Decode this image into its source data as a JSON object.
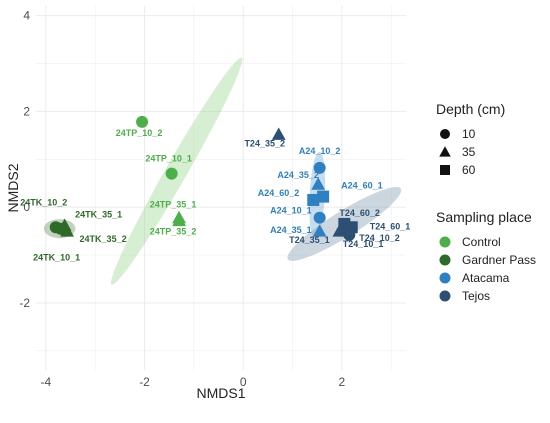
{
  "chart_data": {
    "type": "scatter",
    "xlabel": "NMDS1",
    "ylabel": "NMDS2",
    "xlim": [
      -4.2,
      3.3
    ],
    "ylim": [
      -3.4,
      4.2
    ],
    "x_ticks": [
      -4,
      -2,
      0,
      2
    ],
    "y_ticks": [
      -2,
      0,
      2,
      4
    ],
    "grid": true,
    "legend_position": "right",
    "legends": {
      "shape": {
        "title": "Depth (cm)",
        "items": [
          {
            "label": "10",
            "shape": "circle"
          },
          {
            "label": "35",
            "shape": "triangle"
          },
          {
            "label": "60",
            "shape": "square"
          }
        ]
      },
      "color": {
        "title": "Sampling place",
        "items": [
          {
            "label": "Control",
            "color": "#4daf4a"
          },
          {
            "label": "Gardner Pass",
            "color": "#2e6b2a"
          },
          {
            "label": "Atacama",
            "color": "#2f7fc1"
          },
          {
            "label": "Tejos",
            "color": "#2c4f73"
          }
        ]
      }
    },
    "ellipses": [
      {
        "group": "Control",
        "cx": -1.35,
        "cy": 0.75,
        "rx": 2.65,
        "ry": 0.22,
        "angle_deg": -60.2,
        "color": "#a5d99a"
      },
      {
        "group": "Gardner Pass",
        "cx": -3.72,
        "cy": -0.45,
        "rx": 0.32,
        "ry": 0.2,
        "angle_deg": 0,
        "color": "#7a9a76"
      },
      {
        "group": "Atacama",
        "cx": 1.5,
        "cy": 0.25,
        "rx": 0.88,
        "ry": 0.16,
        "angle_deg": -87,
        "color": "#7fb3e0"
      },
      {
        "group": "Tejos",
        "cx": 2.05,
        "cy": -0.35,
        "rx": 1.35,
        "ry": 0.27,
        "angle_deg": -32,
        "color": "#8fa3b8"
      }
    ],
    "series": [
      {
        "name": "Control",
        "color": "#4daf4a",
        "points": [
          {
            "label": "24TP_10_2",
            "x": -2.05,
            "y": 1.78,
            "shape": "circle"
          },
          {
            "label": "24TP_10_1",
            "x": -1.45,
            "y": 0.7,
            "shape": "circle"
          },
          {
            "label": "24TP_35_1",
            "x": -1.3,
            "y": -0.22,
            "shape": "triangle"
          },
          {
            "label": "24TP_35_2",
            "x": -1.3,
            "y": -0.28,
            "shape": "triangle"
          }
        ]
      },
      {
        "name": "Gardner Pass",
        "color": "#2e6b2a",
        "points": [
          {
            "label": "24TK_10_2",
            "x": -3.8,
            "y": -0.42,
            "shape": "circle"
          },
          {
            "label": "24TK_10_1",
            "x": -3.7,
            "y": -0.45,
            "shape": "circle"
          },
          {
            "label": "24TK_35_1",
            "x": -3.62,
            "y": -0.38,
            "shape": "triangle"
          },
          {
            "label": "24TK_35_2",
            "x": -3.57,
            "y": -0.5,
            "shape": "triangle"
          }
        ]
      },
      {
        "name": "Atacama",
        "color": "#2f7fc1",
        "points": [
          {
            "label": "A24_10_2",
            "x": 1.55,
            "y": 0.82,
            "shape": "circle"
          },
          {
            "label": "A24_35_2",
            "x": 1.52,
            "y": 0.48,
            "shape": "triangle"
          },
          {
            "label": "A24_60_1",
            "x": 1.62,
            "y": 0.22,
            "shape": "square"
          },
          {
            "label": "A24_60_2",
            "x": 1.42,
            "y": 0.15,
            "shape": "square"
          },
          {
            "label": "A24_10_1",
            "x": 1.55,
            "y": -0.22,
            "shape": "circle"
          },
          {
            "label": "A24_35_1",
            "x": 1.55,
            "y": -0.5,
            "shape": "triangle"
          }
        ]
      },
      {
        "name": "Tejos",
        "color": "#2c4f73",
        "points": [
          {
            "label": "T24_35_2",
            "x": 0.72,
            "y": 1.52,
            "shape": "triangle"
          },
          {
            "label": "T24_60_2",
            "x": 2.05,
            "y": -0.35,
            "shape": "square"
          },
          {
            "label": "T24_60_1",
            "x": 2.2,
            "y": -0.42,
            "shape": "square"
          },
          {
            "label": "T24_10_2",
            "x": 2.15,
            "y": -0.58,
            "shape": "circle"
          },
          {
            "label": "T24_35_1",
            "x": 1.95,
            "y": -0.5,
            "shape": "triangle"
          },
          {
            "label": "T24_10_1",
            "x": 2.1,
            "y": -0.5,
            "shape": "circle"
          }
        ]
      }
    ]
  }
}
